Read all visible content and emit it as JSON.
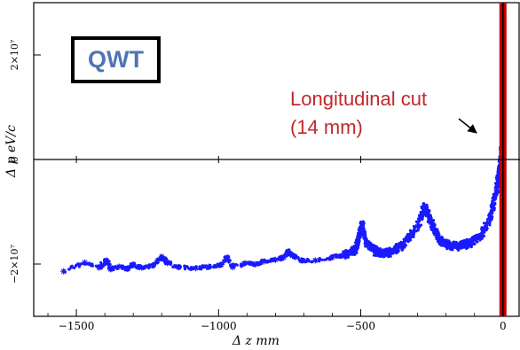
{
  "chart_data": {
    "type": "scatter",
    "xlabel": "Δ z mm",
    "ylabel": "Δ p eV/c",
    "xlim": [
      -1650,
      60
    ],
    "ylim": [
      -30000000,
      30000000
    ],
    "x_ticks": [
      -1500,
      -1000,
      -500,
      0
    ],
    "x_tick_labels": [
      "−1500",
      "−1000",
      "−500",
      "0"
    ],
    "y_ticks": [
      -20000000,
      0,
      20000000
    ],
    "y_tick_labels": [
      "−2×10⁷",
      "0",
      "2×10⁷"
    ],
    "grid": false,
    "series": [
      {
        "color": "#1a1aff",
        "marker": "star",
        "points": [
          [
            -1545,
            -21400000
          ],
          [
            -1470,
            -19700000
          ],
          [
            -1420,
            -20700000
          ],
          [
            -1395,
            -19300000
          ],
          [
            -1380,
            -21000000
          ],
          [
            -1350,
            -20500000
          ],
          [
            -1320,
            -20900000
          ],
          [
            -1300,
            -20100000
          ],
          [
            -1270,
            -20700000
          ],
          [
            -1230,
            -20300000
          ],
          [
            -1215,
            -19400000
          ],
          [
            -1200,
            -18600000
          ],
          [
            -1180,
            -19800000
          ],
          [
            -1140,
            -20600000
          ],
          [
            -1080,
            -20800000
          ],
          [
            -1035,
            -20500000
          ],
          [
            -990,
            -20100000
          ],
          [
            -970,
            -18700000
          ],
          [
            -950,
            -20600000
          ],
          [
            -910,
            -19900000
          ],
          [
            -870,
            -20000000
          ],
          [
            -840,
            -19500000
          ],
          [
            -800,
            -19200000
          ],
          [
            -770,
            -18700000
          ],
          [
            -755,
            -17600000
          ],
          [
            -740,
            -18400000
          ],
          [
            -710,
            -19300000
          ],
          [
            -660,
            -19300000
          ],
          [
            -600,
            -18700000
          ],
          [
            -560,
            -18300000
          ],
          [
            -520,
            -17400000
          ],
          [
            -505,
            -14600000
          ],
          [
            -495,
            -12300000
          ],
          [
            -480,
            -16000000
          ],
          [
            -445,
            -17700000
          ],
          [
            -400,
            -17900000
          ],
          [
            -350,
            -16400000
          ],
          [
            -300,
            -12800000
          ],
          [
            -275,
            -9000000
          ],
          [
            -255,
            -11500000
          ],
          [
            -230,
            -15000000
          ],
          [
            -200,
            -16300000
          ],
          [
            -160,
            -16600000
          ],
          [
            -120,
            -16100000
          ],
          [
            -80,
            -14800000
          ],
          [
            -45,
            -11300000
          ],
          [
            -22,
            -5800000
          ],
          [
            -8,
            -500000
          ],
          [
            0,
            6200000
          ]
        ]
      }
    ],
    "vertical_lines": [
      {
        "x": 0,
        "color": "#c00000"
      }
    ],
    "annotations": [
      {
        "label": "QWT",
        "color": "#4f76b3"
      },
      {
        "label": "Longitudinal cut",
        "line2": "(14 mm)",
        "color": "#c0282b"
      }
    ]
  }
}
